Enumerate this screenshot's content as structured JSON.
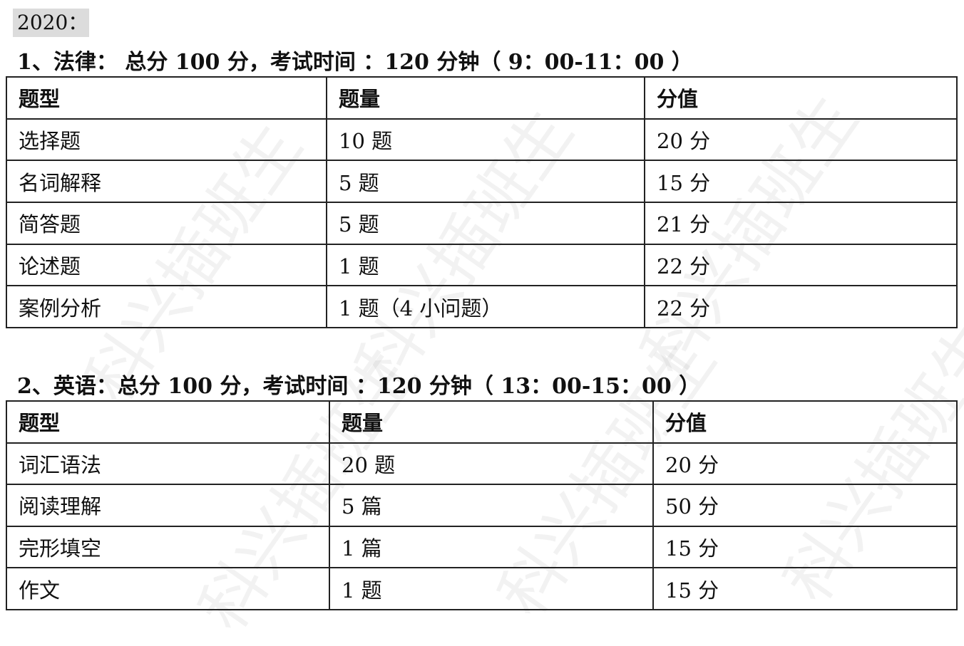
{
  "watermark": "科兴插班生",
  "year_label": "2020：",
  "sections": [
    {
      "heading": "1、法律： 总分 100 分，考试时间 ：120 分钟（ 9：00-11：00 ）",
      "columns": [
        "题型",
        "题量",
        "分值"
      ],
      "rows": [
        [
          "选择题",
          "10 题",
          "20 分"
        ],
        [
          "名词解释",
          "5 题",
          "15 分"
        ],
        [
          "简答题",
          "5 题",
          "21 分"
        ],
        [
          "论述题",
          "1 题",
          "22 分"
        ],
        [
          "案例分析",
          "1 题（4 小问题）",
          "22 分"
        ]
      ]
    },
    {
      "heading": "2、英语：总分 100 分，考试时间 ：120 分钟（ 13：00-15：00 ）",
      "columns": [
        "题型",
        "题量",
        "分值"
      ],
      "rows": [
        [
          "词汇语法",
          "20 题",
          "20 分"
        ],
        [
          "阅读理解",
          "5 篇",
          "50 分"
        ],
        [
          "完形填空",
          "1 篇",
          "15 分"
        ],
        [
          "作文",
          "1 题",
          "15 分"
        ]
      ]
    }
  ]
}
